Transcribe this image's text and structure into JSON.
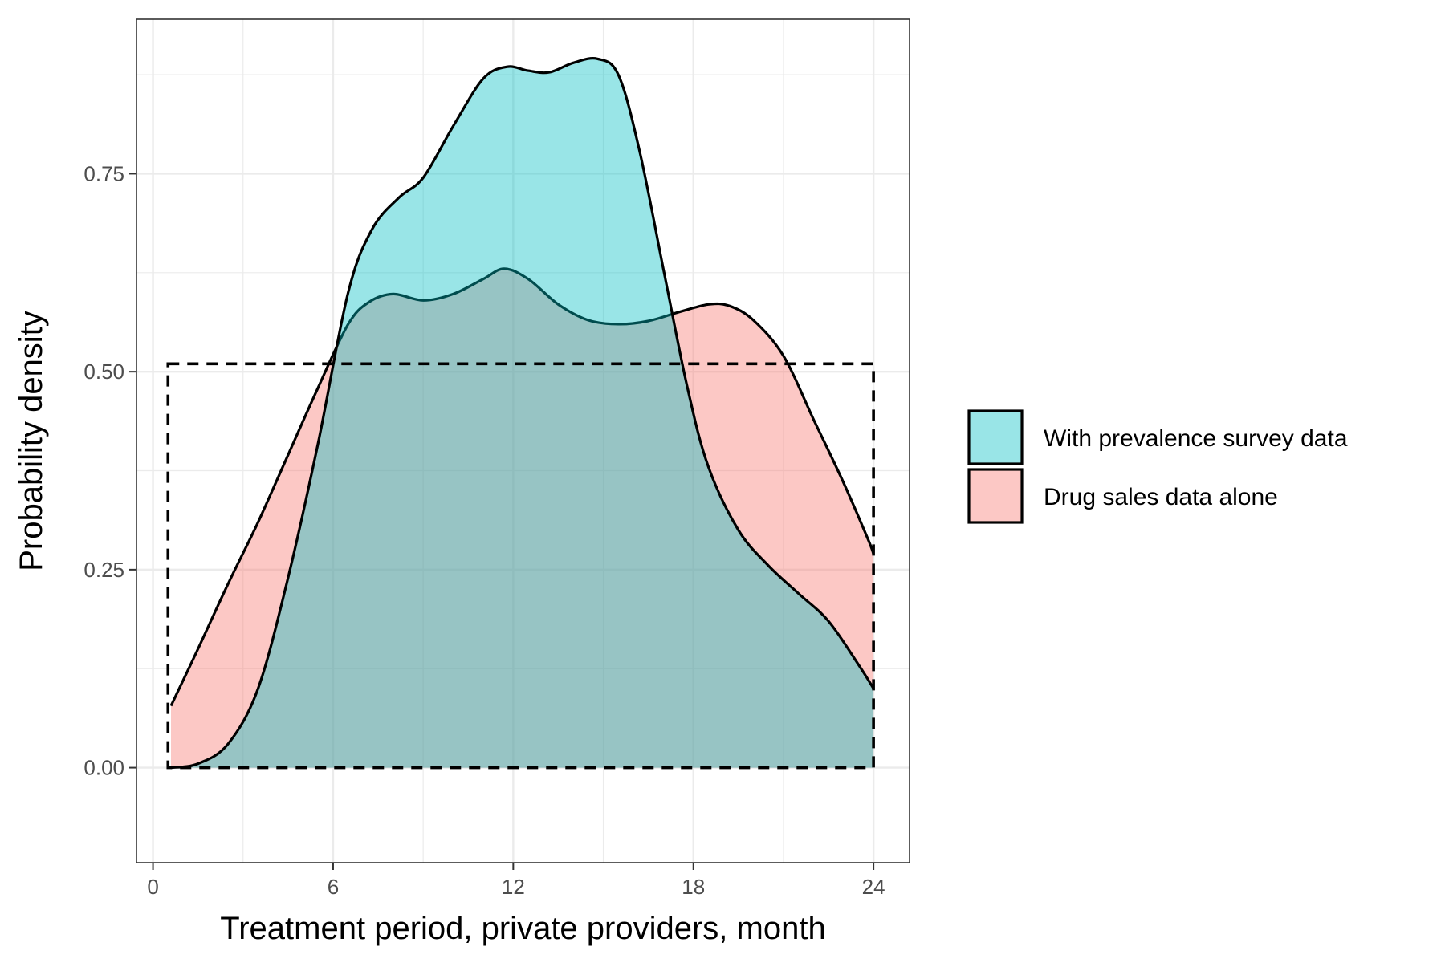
{
  "chart_data": {
    "type": "area",
    "subtype": "density",
    "title": "",
    "xlabel": "Treatment period, private providers, month",
    "ylabel": "Probability density",
    "xlim": [
      -0.55,
      25.2
    ],
    "ylim": [
      -0.12,
      0.945
    ],
    "x_ticks": [
      0,
      6,
      12,
      18,
      24
    ],
    "x_tick_labels": [
      "0",
      "6",
      "12",
      "18",
      "24"
    ],
    "y_ticks": [
      0,
      0.25,
      0.5,
      0.75
    ],
    "y_tick_labels": [
      "0.00",
      "0.25",
      "0.50",
      "0.75"
    ],
    "grid": true,
    "legend_position": "right",
    "series": [
      {
        "name": "Drug sales data alone",
        "color": "#F8766D",
        "fill_opacity": 0.4,
        "x": [
          0.6,
          1.5,
          2.5,
          3.5,
          4.5,
          5.5,
          6.5,
          7.2,
          8.0,
          9.0,
          10.0,
          11.0,
          11.7,
          12.5,
          13.5,
          14.5,
          15.5,
          16.5,
          17.5,
          18.5,
          19.2,
          20.0,
          21.0,
          22.0,
          23.0,
          23.8,
          24.0
        ],
        "y": [
          0.078,
          0.15,
          0.232,
          0.31,
          0.395,
          0.48,
          0.56,
          0.588,
          0.598,
          0.59,
          0.598,
          0.617,
          0.63,
          0.617,
          0.585,
          0.565,
          0.56,
          0.564,
          0.575,
          0.585,
          0.583,
          0.565,
          0.52,
          0.44,
          0.36,
          0.29,
          0.27
        ]
      },
      {
        "name": "With prevalence survey data",
        "color": "#00BFC4",
        "fill_opacity": 0.4,
        "x": [
          0.6,
          1.5,
          2.5,
          3.5,
          4.5,
          5.5,
          6.5,
          7.3,
          8.2,
          9.0,
          10.0,
          11.0,
          11.8,
          12.5,
          13.2,
          14.0,
          14.8,
          15.5,
          16.2,
          17.0,
          17.8,
          18.5,
          19.5,
          20.5,
          21.5,
          22.5,
          23.5,
          24.0
        ],
        "y": [
          0.0,
          0.005,
          0.03,
          0.1,
          0.24,
          0.41,
          0.6,
          0.68,
          0.72,
          0.745,
          0.81,
          0.87,
          0.885,
          0.88,
          0.878,
          0.89,
          0.895,
          0.875,
          0.78,
          0.63,
          0.48,
          0.38,
          0.3,
          0.255,
          0.22,
          0.185,
          0.13,
          0.1
        ]
      }
    ],
    "reference_box": {
      "style": "dashed",
      "x": [
        0.5,
        24.0
      ],
      "y": [
        0.0,
        0.51
      ]
    },
    "legend": [
      {
        "label": "With prevalence survey data",
        "color": "#00BFC4"
      },
      {
        "label": "Drug sales data alone",
        "color": "#F8766D"
      }
    ]
  }
}
